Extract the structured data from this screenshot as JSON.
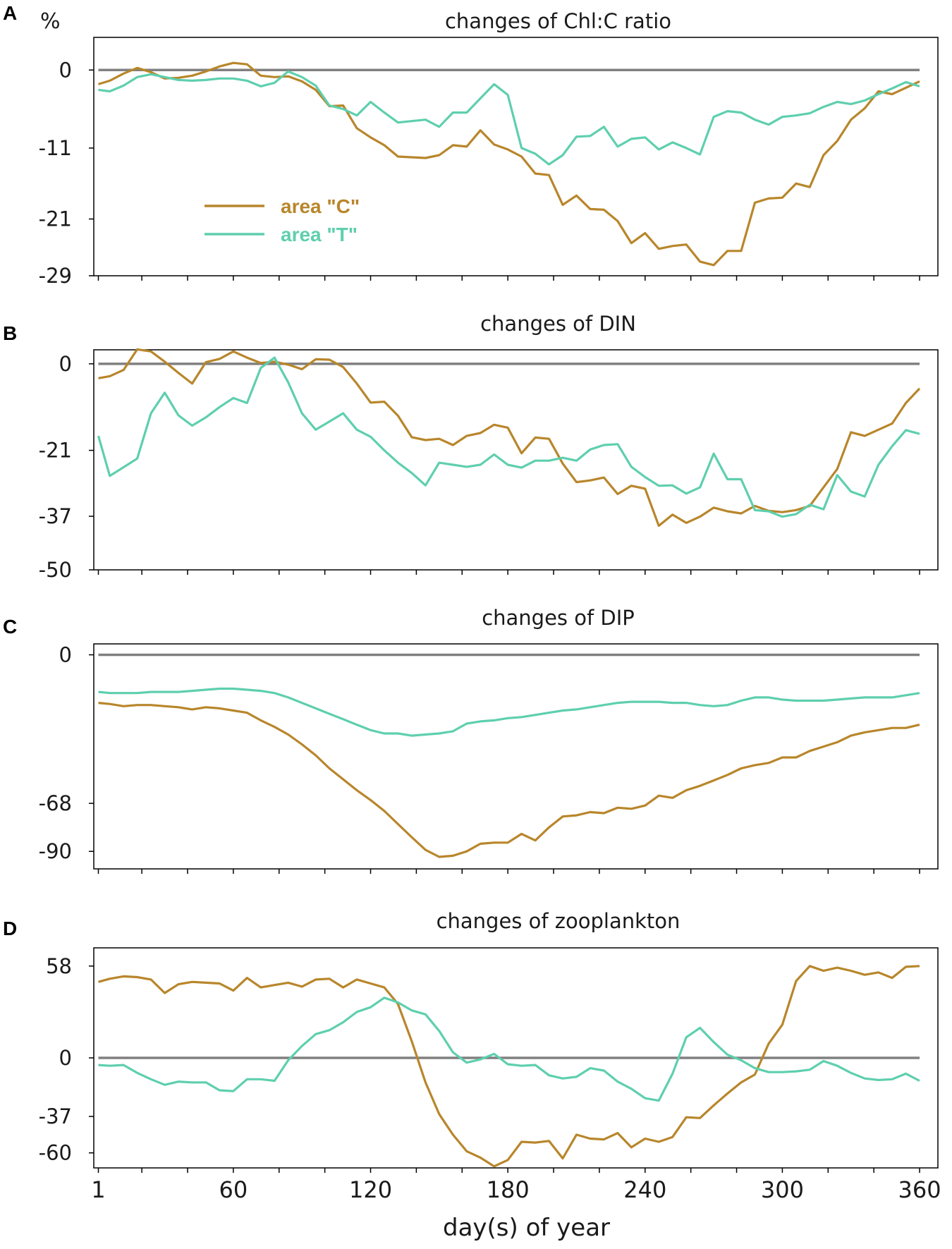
{
  "figure": {
    "y_unit": "%",
    "xlabel": "day(s) of year",
    "x_ticks": [
      1,
      60,
      120,
      180,
      240,
      300,
      360
    ],
    "legend": [
      {
        "label": "area \"C\"",
        "color": "#B8862B"
      },
      {
        "label": "area \"T\"",
        "color": "#5ECFAE"
      }
    ],
    "zero_line_color": "#808080"
  },
  "chart_data": [
    {
      "panel": "A",
      "type": "line",
      "title": "changes of Chl:C ratio",
      "xlabel": "day(s) of year",
      "ylabel": "%",
      "xlim": [
        -1,
        368
      ],
      "ylim": [
        -29,
        4.6
      ],
      "yticks": [
        0,
        -11,
        -21,
        -29
      ],
      "x": [
        1,
        6,
        12,
        18,
        24,
        30,
        36,
        42,
        48,
        54,
        60,
        66,
        72,
        78,
        84,
        90,
        96,
        102,
        108,
        114,
        120,
        126,
        132,
        138,
        144,
        150,
        156,
        162,
        168,
        174,
        180,
        186,
        192,
        198,
        204,
        210,
        216,
        222,
        228,
        234,
        240,
        246,
        252,
        258,
        264,
        270,
        276,
        282,
        288,
        294,
        300,
        306,
        312,
        318,
        324,
        330,
        336,
        342,
        348,
        354,
        360
      ],
      "series": [
        {
          "name": "area \"C\"",
          "color": "#B8862B",
          "values": [
            -2.0,
            -1.5,
            -0.5,
            0.3,
            -0.3,
            -1.2,
            -1.1,
            -0.8,
            -0.2,
            0.5,
            1.0,
            0.8,
            -0.8,
            -1.0,
            -0.9,
            -1.6,
            -2.8,
            -5.1,
            -5.0,
            -8.2,
            -9.5,
            -10.6,
            -12.2,
            -12.3,
            -12.4,
            -12.0,
            -10.6,
            -10.8,
            -8.5,
            -10.5,
            -11.2,
            -12.2,
            -14.6,
            -14.8,
            -19.0,
            -17.7,
            -19.6,
            -19.7,
            -21.3,
            -24.4,
            -23.0,
            -25.2,
            -24.8,
            -24.6,
            -27.0,
            -27.5,
            -25.5,
            -25.5,
            -18.7,
            -18.1,
            -18.0,
            -16.0,
            -16.5,
            -12.0,
            -10.0,
            -7.0,
            -5.4,
            -3.0,
            -3.4,
            -2.5,
            -1.6
          ]
        },
        {
          "name": "area \"T\"",
          "color": "#5ECFAE",
          "values": [
            -2.8,
            -3.0,
            -2.2,
            -1.0,
            -0.6,
            -1.0,
            -1.4,
            -1.5,
            -1.4,
            -1.2,
            -1.2,
            -1.5,
            -2.3,
            -1.8,
            -0.2,
            -1.0,
            -2.2,
            -5.0,
            -5.5,
            -6.4,
            -4.5,
            -6.0,
            -7.4,
            -7.2,
            -7.0,
            -8.0,
            -6.0,
            -6.0,
            -4.0,
            -2.0,
            -3.5,
            -11.0,
            -11.8,
            -13.3,
            -12.0,
            -9.4,
            -9.3,
            -8.0,
            -10.8,
            -9.7,
            -9.5,
            -11.2,
            -10.2,
            -11.0,
            -11.9,
            -6.6,
            -5.8,
            -6.0,
            -7.0,
            -7.7,
            -6.6,
            -6.4,
            -6.1,
            -5.2,
            -4.5,
            -4.8,
            -4.3,
            -3.4,
            -2.6,
            -1.7,
            -2.3
          ]
        }
      ]
    },
    {
      "panel": "B",
      "type": "line",
      "title": "changes of DIN",
      "xlabel": "day(s) of year",
      "ylabel": "%",
      "xlim": [
        -1,
        368
      ],
      "ylim": [
        -50,
        3.4
      ],
      "yticks": [
        0,
        -21,
        -37,
        -50
      ],
      "x": [
        1,
        6,
        12,
        18,
        24,
        30,
        36,
        42,
        48,
        54,
        60,
        66,
        72,
        78,
        84,
        90,
        96,
        102,
        108,
        114,
        120,
        126,
        132,
        138,
        144,
        150,
        156,
        162,
        168,
        174,
        180,
        186,
        192,
        198,
        204,
        210,
        216,
        222,
        228,
        234,
        240,
        246,
        252,
        258,
        264,
        270,
        276,
        282,
        288,
        294,
        300,
        306,
        312,
        318,
        324,
        330,
        336,
        342,
        348,
        354,
        360
      ],
      "series": [
        {
          "name": "area \"C\"",
          "color": "#B8862B",
          "values": [
            -3.5,
            -3.0,
            -1.5,
            3.5,
            3.0,
            0.5,
            -2.2,
            -4.8,
            0.4,
            1.2,
            3.0,
            1.5,
            0.2,
            0.5,
            -0.2,
            -1.3,
            1.1,
            1.0,
            -0.8,
            -4.8,
            -9.4,
            -9.2,
            -12.6,
            -17.8,
            -18.5,
            -18.2,
            -19.7,
            -17.5,
            -16.8,
            -14.8,
            -15.5,
            -21.7,
            -17.9,
            -18.2,
            -24.2,
            -28.7,
            -28.3,
            -27.6,
            -31.6,
            -29.6,
            -30.3,
            -39.3,
            -36.6,
            -38.6,
            -37.1,
            -34.9,
            -35.8,
            -36.3,
            -34.5,
            -35.7,
            -36.0,
            -35.5,
            -34.5,
            -30.0,
            -25.5,
            -16.6,
            -17.5,
            -16.0,
            -14.5,
            -9.5,
            -6.0
          ]
        },
        {
          "name": "area \"T\"",
          "color": "#5ECFAE",
          "values": [
            -17.5,
            -27.2,
            -25.1,
            -23.0,
            -12.0,
            -7.0,
            -12.5,
            -15.0,
            -13.0,
            -10.5,
            -8.3,
            -9.5,
            -1.0,
            1.5,
            -4.5,
            -12.0,
            -16.0,
            -14.0,
            -12.0,
            -16.0,
            -17.7,
            -21.0,
            -24.0,
            -26.5,
            -29.5,
            -24.0,
            -24.5,
            -25.0,
            -24.5,
            -22.0,
            -24.5,
            -25.2,
            -23.5,
            -23.5,
            -22.8,
            -23.5,
            -20.8,
            -19.7,
            -19.5,
            -25.0,
            -27.5,
            -29.6,
            -29.5,
            -31.5,
            -30.0,
            -21.8,
            -28.0,
            -28.0,
            -35.5,
            -35.8,
            -37.1,
            -36.5,
            -34.2,
            -35.3,
            -27.0,
            -31.0,
            -32.2,
            -24.5,
            -20.0,
            -16.1,
            -17.0
          ]
        }
      ]
    },
    {
      "panel": "C",
      "type": "line",
      "title": "changes of DIP",
      "xlabel": "day(s) of year",
      "ylabel": "%",
      "xlim": [
        -1,
        368
      ],
      "ylim": [
        -98,
        5
      ],
      "yticks": [
        0,
        -68,
        -90
      ],
      "x": [
        1,
        6,
        12,
        18,
        24,
        30,
        36,
        42,
        48,
        54,
        60,
        66,
        72,
        78,
        84,
        90,
        96,
        102,
        108,
        114,
        120,
        126,
        132,
        138,
        144,
        150,
        156,
        162,
        168,
        174,
        180,
        186,
        192,
        198,
        204,
        210,
        216,
        222,
        228,
        234,
        240,
        246,
        252,
        258,
        264,
        270,
        276,
        282,
        288,
        294,
        300,
        306,
        312,
        318,
        324,
        330,
        336,
        342,
        348,
        354,
        360
      ],
      "series": [
        {
          "name": "area \"C\"",
          "color": "#B8862B",
          "values": [
            -22,
            -22.5,
            -23.5,
            -23,
            -23,
            -23.5,
            -24,
            -25,
            -24,
            -24.5,
            -25.5,
            -26.5,
            -30,
            -33,
            -36.5,
            -41,
            -46,
            -52,
            -57,
            -62,
            -66.5,
            -71.5,
            -77.5,
            -83.5,
            -89.3,
            -92.5,
            -92,
            -90,
            -86.5,
            -86,
            -86,
            -82,
            -85,
            -79,
            -74,
            -73.5,
            -72,
            -72.5,
            -70,
            -70.5,
            -69,
            -64.5,
            -65.5,
            -62,
            -60,
            -57.5,
            -55,
            -52,
            -50.5,
            -49.5,
            -47,
            -47,
            -44,
            -42,
            -40,
            -37,
            -35.5,
            -34.5,
            -33.5,
            -33.5,
            -32
          ]
        },
        {
          "name": "area \"T\"",
          "color": "#5ECFAE",
          "values": [
            -17,
            -17.5,
            -17.5,
            -17.5,
            -17,
            -17,
            -17,
            -16.5,
            -16,
            -15.5,
            -15.5,
            -16,
            -16.5,
            -17.5,
            -19.5,
            -22,
            -24.5,
            -27,
            -29.5,
            -32,
            -34.5,
            -36,
            -36,
            -37,
            -36.5,
            -36,
            -35,
            -31.5,
            -30.5,
            -30,
            -29,
            -28.5,
            -27.5,
            -26.5,
            -25.5,
            -25,
            -24,
            -23,
            -22,
            -21.5,
            -21.5,
            -21.5,
            -22,
            -22,
            -23,
            -23.5,
            -23,
            -21,
            -19.5,
            -19.5,
            -20.5,
            -21,
            -21,
            -21,
            -20.5,
            -20,
            -19.5,
            -19.5,
            -19.5,
            -18.5,
            -17.5
          ]
        }
      ]
    },
    {
      "panel": "D",
      "type": "line",
      "title": "changes of zooplankton",
      "xlabel": "day(s) of year",
      "ylabel": "%",
      "xlim": [
        -1,
        368
      ],
      "ylim": [
        -69.5,
        69.5
      ],
      "yticks": [
        58,
        0,
        -37,
        -60
      ],
      "x": [
        1,
        6,
        12,
        18,
        24,
        30,
        36,
        42,
        48,
        54,
        60,
        66,
        72,
        78,
        84,
        90,
        96,
        102,
        108,
        114,
        120,
        126,
        132,
        138,
        144,
        150,
        156,
        162,
        168,
        174,
        180,
        186,
        192,
        198,
        204,
        210,
        216,
        222,
        228,
        234,
        240,
        246,
        252,
        258,
        264,
        270,
        276,
        282,
        288,
        294,
        300,
        306,
        312,
        318,
        324,
        330,
        336,
        342,
        348,
        354,
        360
      ],
      "series": [
        {
          "name": "area \"C\"",
          "color": "#B8862B",
          "values": [
            48,
            50,
            51.5,
            51,
            49.5,
            41,
            46.5,
            48,
            47.5,
            47,
            42.5,
            50.5,
            44.5,
            46,
            47.5,
            45,
            49.5,
            50,
            44.5,
            49.5,
            47,
            44.5,
            34,
            10.5,
            -15.5,
            -35.5,
            -48.5,
            -59,
            -63,
            -68.5,
            -64.5,
            -53,
            -53.5,
            -52.5,
            -63.5,
            -48.5,
            -51,
            -51.5,
            -47.5,
            -56.5,
            -51,
            -53,
            -50,
            -37.5,
            -38,
            -30,
            -22.5,
            -15.5,
            -10.5,
            9,
            21,
            48.5,
            58,
            55,
            57,
            55,
            52.5,
            54,
            50.5,
            57.5,
            58
          ]
        },
        {
          "name": "area \"T\"",
          "color": "#5ECFAE",
          "values": [
            -4.5,
            -5,
            -4.5,
            -9.5,
            -13.5,
            -17,
            -15,
            -15.5,
            -15.5,
            -20.5,
            -21,
            -13.5,
            -13.5,
            -14.5,
            -1.5,
            7.5,
            15,
            17.5,
            22.5,
            29,
            32,
            38,
            35,
            30,
            27.5,
            17,
            3.5,
            -3,
            -1,
            2.5,
            -4,
            -5,
            -4.5,
            -11,
            -13,
            -12,
            -6.5,
            -8,
            -15,
            -19.5,
            -25.5,
            -27,
            -10,
            13,
            19,
            10,
            2,
            -1.5,
            -6.5,
            -9,
            -9,
            -8.5,
            -7.5,
            -2,
            -5,
            -9.5,
            -13,
            -14,
            -13.5,
            -10,
            -14.5
          ]
        }
      ]
    }
  ]
}
